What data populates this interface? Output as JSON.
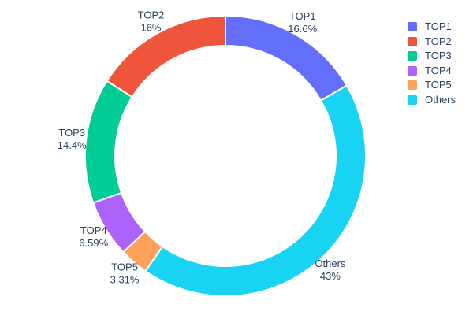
{
  "chart_data": {
    "type": "pie",
    "subtype": "donut",
    "title": "",
    "hole": 0.786,
    "legend_position": "right",
    "start_angle_deg": 0,
    "direction": "clockwise-from-top",
    "background_color": "#ffffff",
    "label_color": "#2a3f5f",
    "separator_color": "#ffffff",
    "categories": [
      "TOP1",
      "TOP2",
      "TOP3",
      "TOP4",
      "TOP5",
      "Others"
    ],
    "values": [
      16.6,
      16,
      14.4,
      6.59,
      3.31,
      43
    ],
    "slices": [
      {
        "label": "TOP1",
        "value": 16.6,
        "percent_label": "16.6%",
        "color": "#636efa"
      },
      {
        "label": "Others",
        "value": 43,
        "percent_label": "43%",
        "color": "#19d3f3"
      },
      {
        "label": "TOP5",
        "value": 3.31,
        "percent_label": "3.31%",
        "color": "#ffa15a"
      },
      {
        "label": "TOP4",
        "value": 6.59,
        "percent_label": "6.59%",
        "color": "#ab63fa"
      },
      {
        "label": "TOP3",
        "value": 14.4,
        "percent_label": "14.4%",
        "color": "#00cc96"
      },
      {
        "label": "TOP2",
        "value": 16,
        "percent_label": "16%",
        "color": "#ef553b"
      }
    ]
  },
  "legend": {
    "items": [
      {
        "label": "TOP1",
        "color": "#636efa"
      },
      {
        "label": "TOP2",
        "color": "#ef553b"
      },
      {
        "label": "TOP3",
        "color": "#00cc96"
      },
      {
        "label": "TOP4",
        "color": "#ab63fa"
      },
      {
        "label": "TOP5",
        "color": "#ffa15a"
      },
      {
        "label": "Others",
        "color": "#19d3f3"
      }
    ]
  }
}
